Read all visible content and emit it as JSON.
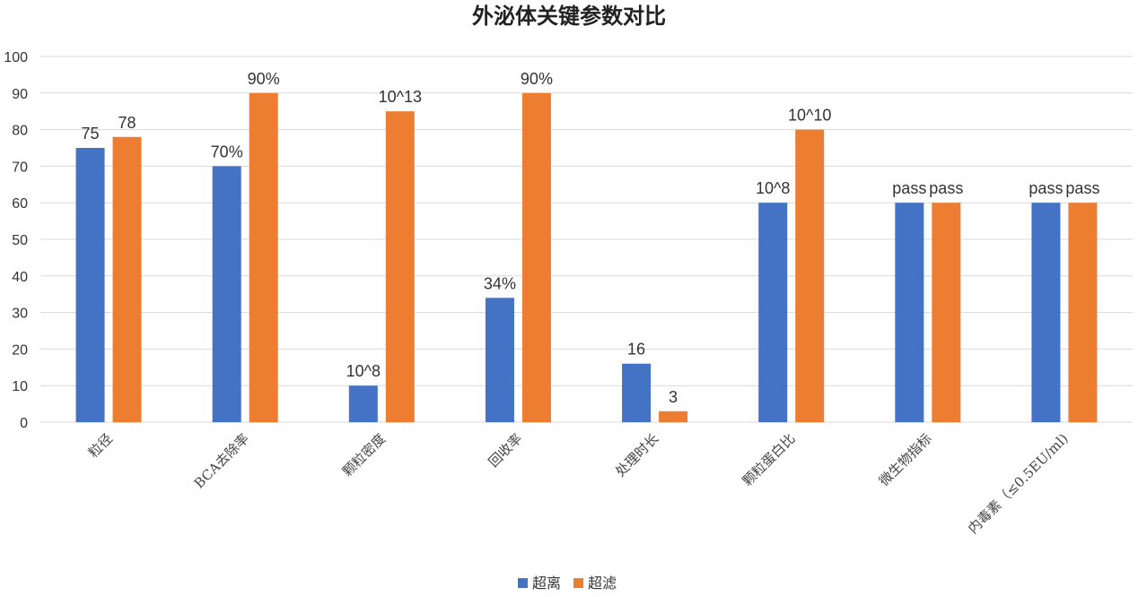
{
  "chart_data": {
    "type": "bar",
    "title": "外泌体关键参数对比",
    "xlabel": "",
    "ylabel": "",
    "ylim": [
      0,
      100
    ],
    "yticks": [
      0,
      10,
      20,
      30,
      40,
      50,
      60,
      70,
      80,
      90,
      100
    ],
    "grid": true,
    "legend_position": "bottom",
    "categories": [
      "粒径",
      "BCA去除率",
      "颗粒密度",
      "回收率",
      "处理时长",
      "颗粒蛋白比",
      "微生物指标",
      "内毒素（≤0.5EU/ml)"
    ],
    "series": [
      {
        "name": "超离",
        "color": "#4472C4",
        "values": [
          75,
          70,
          10,
          34,
          16,
          60,
          60,
          60
        ],
        "labels": [
          "75",
          "70%",
          "10^8",
          "34%",
          "16",
          "10^8",
          "pass",
          "pass"
        ]
      },
      {
        "name": "超滤",
        "color": "#ED7D31",
        "values": [
          78,
          90,
          85,
          90,
          3,
          80,
          60,
          60
        ],
        "labels": [
          "78",
          "90%",
          "10^13",
          "90%",
          "3",
          "10^10",
          "pass",
          "pass"
        ]
      }
    ]
  }
}
